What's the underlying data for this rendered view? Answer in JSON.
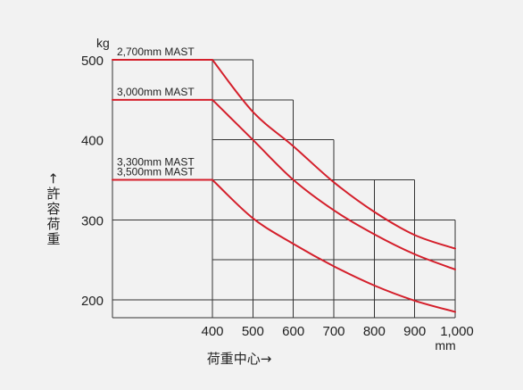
{
  "chart_data": {
    "type": "line",
    "title": "",
    "xlabel": "荷重中心→",
    "ylabel": "←許容荷重",
    "xunit": "mm",
    "yunit": "kg",
    "xlim": [
      400,
      1000
    ],
    "ylim": [
      200,
      500
    ],
    "x_ticks": [
      400,
      500,
      600,
      700,
      800,
      900,
      1000
    ],
    "x_tick_labels": [
      "400",
      "500",
      "600",
      "700",
      "800",
      "900",
      "1,000"
    ],
    "y_ticks": [
      200,
      300,
      400,
      500
    ],
    "y_tick_labels": [
      "200",
      "300",
      "400",
      "500"
    ],
    "load_diagram_steps": [
      {
        "x": 400,
        "y": 500
      },
      {
        "x": 500,
        "y": 500
      },
      {
        "x": 500,
        "y": 450
      },
      {
        "x": 600,
        "y": 450
      },
      {
        "x": 600,
        "y": 400
      },
      {
        "x": 700,
        "y": 400
      },
      {
        "x": 700,
        "y": 350
      },
      {
        "x": 900,
        "y": 350
      },
      {
        "x": 900,
        "y": 300
      },
      {
        "x": 1000,
        "y": 300
      }
    ],
    "series": [
      {
        "name": "2,700mm MAST",
        "color": "#d41f2b",
        "plateau": {
          "y": 500,
          "x_start": 300,
          "x_end": 400
        },
        "curve_x": [
          400,
          500,
          600,
          700,
          800,
          900,
          1000
        ],
        "curve_y": [
          500,
          435,
          392,
          347,
          310,
          281,
          264
        ]
      },
      {
        "name": "3,000mm MAST",
        "color": "#d41f2b",
        "plateau": {
          "y": 450,
          "x_start": 300,
          "x_end": 400
        },
        "curve_x": [
          400,
          500,
          600,
          700,
          800,
          900,
          1000
        ],
        "curve_y": [
          450,
          400,
          350,
          312,
          282,
          257,
          238
        ]
      },
      {
        "name": "3,300mm MAST\n3,500mm MAST",
        "label_lines": [
          "3,300mm MAST",
          "3,500mm MAST"
        ],
        "color": "#d41f2b",
        "plateau": {
          "y": 350,
          "x_start": 300,
          "x_end": 400
        },
        "curve_x": [
          400,
          500,
          600,
          700,
          800,
          900,
          1000
        ],
        "curve_y": [
          350,
          302,
          270,
          242,
          218,
          199,
          185
        ]
      }
    ]
  }
}
